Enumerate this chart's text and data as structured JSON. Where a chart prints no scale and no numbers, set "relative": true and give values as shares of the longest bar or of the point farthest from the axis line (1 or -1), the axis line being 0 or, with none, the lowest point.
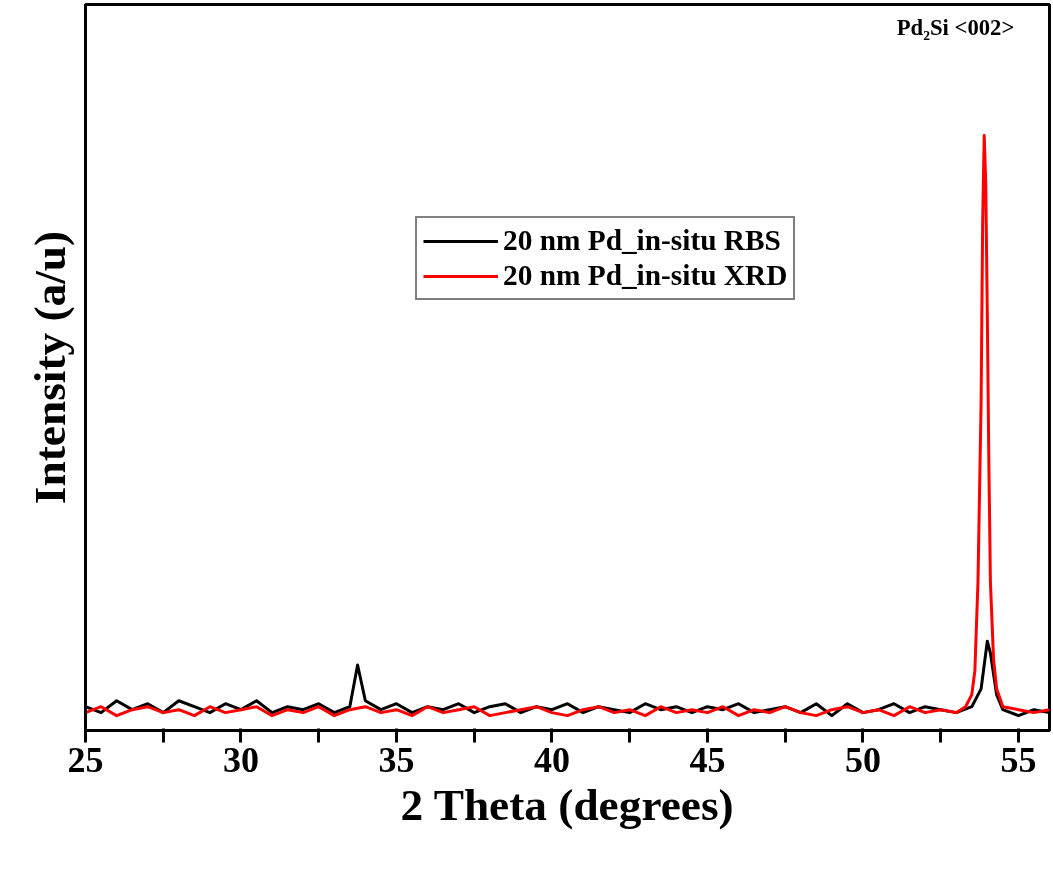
{
  "chart_data": {
    "type": "line",
    "relative": true,
    "xlabel": "2 Theta (degrees)",
    "ylabel": "Intensity (a/u)",
    "xlim": [
      25,
      56
    ],
    "xticks": [
      25,
      {
        "value": 27.5,
        "label": null
      },
      30,
      {
        "value": 32.5,
        "label": null
      },
      35,
      {
        "value": 37.5,
        "label": null
      },
      40,
      {
        "value": 42.5,
        "label": null
      },
      45,
      {
        "value": 47.5,
        "label": null
      },
      50,
      {
        "value": 52.5,
        "label": null
      },
      55
    ],
    "tick_labels": "x",
    "grid": false,
    "legend": "top right",
    "line_style": "solid",
    "marker": "none",
    "annotations": [
      "Pd₂Si <002>"
    ],
    "series": [
      {
        "name": "20 nm Pd_in-situ RBS",
        "color": "#000000",
        "x": [
          25,
          25.5,
          26,
          26.5,
          27,
          27.5,
          28,
          28.5,
          29,
          29.5,
          30,
          30.5,
          31,
          31.5,
          32,
          32.5,
          33,
          33.5,
          33.75,
          34,
          34.5,
          35,
          35.5,
          36,
          36.5,
          37,
          37.5,
          38,
          38.5,
          39,
          39.5,
          40,
          40.5,
          41,
          41.5,
          42,
          42.5,
          43,
          43.5,
          44,
          44.5,
          45,
          45.5,
          46,
          46.5,
          47,
          47.5,
          48,
          48.5,
          49,
          49.5,
          50,
          50.5,
          51,
          51.5,
          52,
          52.5,
          53,
          53.5,
          53.8,
          54,
          54.1,
          54.3,
          54.5,
          55,
          55.5,
          56
        ],
        "values": [
          0.04,
          0.03,
          0.05,
          0.035,
          0.045,
          0.03,
          0.05,
          0.04,
          0.03,
          0.045,
          0.035,
          0.05,
          0.03,
          0.04,
          0.035,
          0.045,
          0.03,
          0.04,
          0.11,
          0.05,
          0.035,
          0.045,
          0.03,
          0.04,
          0.035,
          0.045,
          0.03,
          0.04,
          0.045,
          0.03,
          0.04,
          0.035,
          0.045,
          0.03,
          0.04,
          0.035,
          0.03,
          0.045,
          0.035,
          0.04,
          0.03,
          0.04,
          0.035,
          0.045,
          0.03,
          0.035,
          0.04,
          0.03,
          0.045,
          0.025,
          0.045,
          0.03,
          0.035,
          0.045,
          0.03,
          0.04,
          0.035,
          0.03,
          0.04,
          0.07,
          0.15,
          0.13,
          0.06,
          0.035,
          0.025,
          0.035,
          0.03
        ]
      },
      {
        "name": "20 nm Pd_in-situ XRD",
        "color": "#ff0000",
        "x": [
          25,
          25.5,
          26,
          26.5,
          27,
          27.5,
          28,
          28.5,
          29,
          29.5,
          30,
          30.5,
          31,
          31.5,
          32,
          32.5,
          33,
          33.5,
          34,
          34.5,
          35,
          35.5,
          36,
          36.5,
          37,
          37.5,
          38,
          38.5,
          39,
          39.5,
          40,
          40.5,
          41,
          41.5,
          42,
          42.5,
          43,
          43.5,
          44,
          44.5,
          45,
          45.5,
          46,
          46.5,
          47,
          47.5,
          48,
          48.5,
          49,
          49.5,
          50,
          50.5,
          51,
          51.5,
          52,
          52.5,
          53,
          53.3,
          53.5,
          53.6,
          53.7,
          53.8,
          53.85,
          53.9,
          53.95,
          54,
          54.05,
          54.1,
          54.2,
          54.3,
          54.5,
          55,
          55.5,
          56
        ],
        "values": [
          0.03,
          0.04,
          0.025,
          0.035,
          0.04,
          0.03,
          0.035,
          0.025,
          0.04,
          0.03,
          0.035,
          0.04,
          0.025,
          0.035,
          0.03,
          0.04,
          0.025,
          0.035,
          0.04,
          0.03,
          0.035,
          0.025,
          0.04,
          0.03,
          0.035,
          0.04,
          0.025,
          0.03,
          0.035,
          0.04,
          0.03,
          0.025,
          0.035,
          0.04,
          0.03,
          0.035,
          0.025,
          0.04,
          0.03,
          0.035,
          0.03,
          0.04,
          0.025,
          0.035,
          0.03,
          0.04,
          0.03,
          0.025,
          0.035,
          0.04,
          0.03,
          0.035,
          0.025,
          0.04,
          0.03,
          0.035,
          0.03,
          0.04,
          0.06,
          0.1,
          0.25,
          0.55,
          0.85,
          1.0,
          0.92,
          0.7,
          0.45,
          0.25,
          0.12,
          0.07,
          0.04,
          0.035,
          0.03,
          0.035
        ]
      }
    ]
  }
}
